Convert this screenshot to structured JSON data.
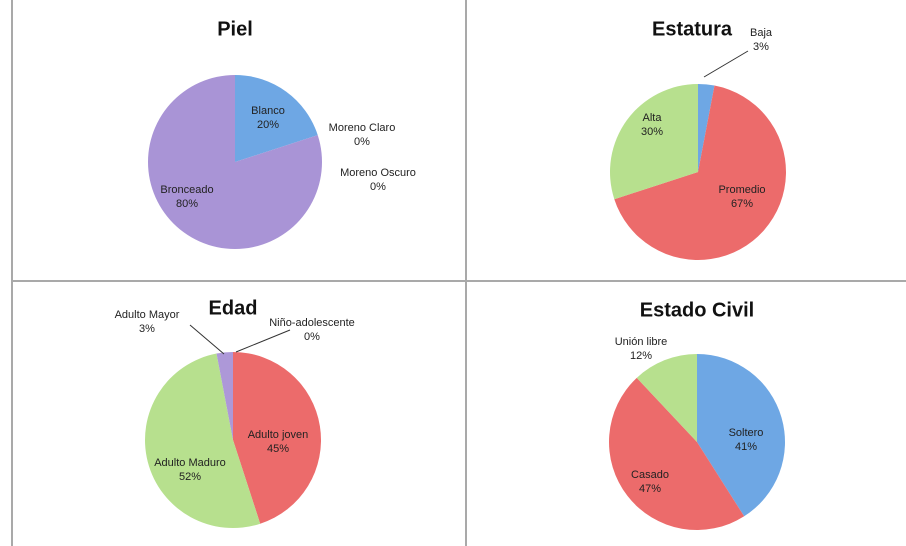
{
  "chart_data": [
    {
      "type": "pie",
      "title": "Piel",
      "categories": [
        "Blanco",
        "Moreno Claro",
        "Moreno Oscuro",
        "Bronceado"
      ],
      "values": [
        20,
        0,
        0,
        80
      ],
      "value_labels": [
        "20%",
        "0%",
        "0%",
        "80%"
      ],
      "colors": [
        "#6ea7e4",
        "#e06666",
        "#b3dc8a",
        "#a994d6"
      ]
    },
    {
      "type": "pie",
      "title": "Estatura",
      "categories": [
        "Baja",
        "Promedio",
        "Alta"
      ],
      "values": [
        3,
        67,
        30
      ],
      "value_labels": [
        "3%",
        "67%",
        "30%"
      ],
      "colors": [
        "#6ea7e4",
        "#ec6b6b",
        "#b7e08e"
      ]
    },
    {
      "type": "pie",
      "title": "Edad",
      "categories": [
        "Adulto joven",
        "Adulto Maduro",
        "Adulto Mayor",
        "Niño-adolescente"
      ],
      "values": [
        45,
        52,
        3,
        0
      ],
      "value_labels": [
        "45%",
        "52%",
        "3%",
        "0%"
      ],
      "colors": [
        "#ec6b6b",
        "#b7e08e",
        "#ad98d8",
        "#6ea7e4"
      ]
    },
    {
      "type": "pie",
      "title": "Estado Civil",
      "categories": [
        "Soltero",
        "Casado",
        "Unión libre"
      ],
      "values": [
        41,
        47,
        12
      ],
      "value_labels": [
        "41%",
        "47%",
        "12%"
      ],
      "colors": [
        "#6ea7e4",
        "#ec6b6b",
        "#b7e08e"
      ]
    }
  ]
}
